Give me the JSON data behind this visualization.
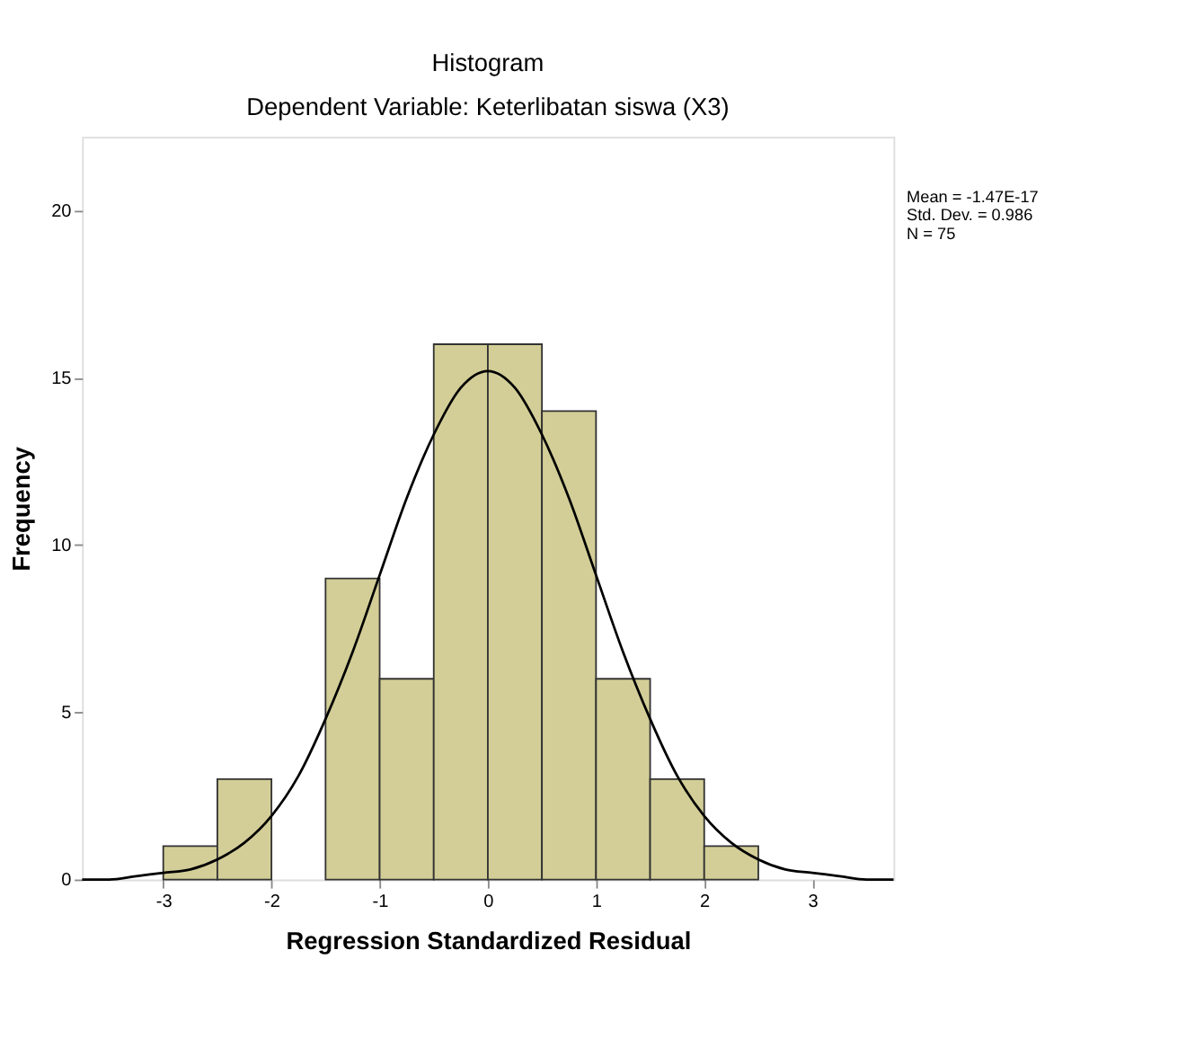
{
  "chart_data": {
    "type": "histogram",
    "title": "Histogram",
    "subtitle": "Dependent Variable: Keterlibatan siswa (X3)",
    "xlabel": "Regression Standardized Residual",
    "ylabel": "Frequency",
    "bins": [
      -3,
      -2.5,
      -2,
      -1.5,
      -1,
      -0.5,
      0,
      0.5,
      1,
      1.5,
      2,
      2.5
    ],
    "values": [
      1,
      3,
      0,
      9,
      6,
      16,
      16,
      14,
      6,
      3,
      1
    ],
    "color": "#d3ce97",
    "series": [
      {
        "type": "line",
        "color": "#000000",
        "x": [
          -3.75,
          -3.5,
          -3.25,
          -3,
          -2.75,
          -2.5,
          -2.25,
          -2,
          -1.75,
          -1.5,
          -1.25,
          -1,
          -0.75,
          -0.5,
          -0.25,
          0,
          0.25,
          0.5,
          0.75,
          1,
          1.25,
          1.5,
          1.75,
          2,
          2.25,
          2.5,
          2.75,
          3,
          3.25,
          3.5,
          3.75
        ],
        "values": [
          0.0,
          0.0,
          0.1,
          0.2,
          0.3,
          0.6,
          1.1,
          1.9,
          3.1,
          4.8,
          6.8,
          9.1,
          11.4,
          13.3,
          14.7,
          15.2,
          14.7,
          13.3,
          11.4,
          9.1,
          6.8,
          4.8,
          3.1,
          1.9,
          1.1,
          0.6,
          0.3,
          0.2,
          0.1,
          0.0,
          0.0
        ]
      }
    ],
    "xlim": [
      -3.75,
      3.75
    ],
    "xticks": [
      -3,
      -2,
      -1,
      0,
      1,
      2,
      3
    ],
    "ylim": [
      0,
      22.2
    ],
    "yticks": [
      0,
      5,
      10,
      15,
      20
    ],
    "grid": false,
    "annotations": [
      "Mean = -1.47E-17",
      "Std. Dev. = 0.986",
      "N = 75"
    ]
  }
}
